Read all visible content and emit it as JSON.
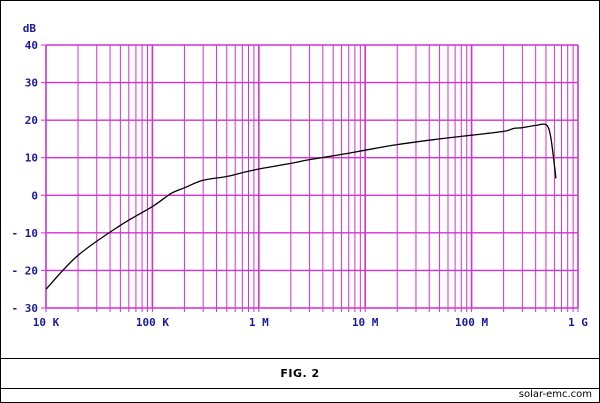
{
  "chart_data": {
    "type": "line",
    "title": "",
    "xlabel": "",
    "ylabel": "dB",
    "x_scale": "log",
    "xlim_hz": [
      10000,
      1000000000
    ],
    "ylim": [
      -30,
      40
    ],
    "grid": true,
    "y_ticks": [
      40,
      30,
      20,
      10,
      0,
      -10,
      -20,
      -30
    ],
    "y_tick_labels": [
      "40",
      "30",
      "20",
      "10",
      "0",
      "- 10",
      "- 20",
      "- 30"
    ],
    "x_ticks_hz": [
      10000,
      100000,
      1000000,
      10000000,
      100000000,
      1000000000
    ],
    "x_tick_labels": [
      "10 K",
      "100 K",
      "1 M",
      "10 M",
      "100 M",
      "1 G"
    ],
    "series": [
      {
        "x_hz": [
          10000,
          20000,
          50000,
          100000,
          150000,
          200000,
          300000,
          500000,
          700000,
          1000000,
          2000000,
          3000000,
          5000000,
          10000000,
          20000000,
          50000000,
          100000000,
          200000000,
          250000000,
          300000000,
          400000000,
          500000000,
          550000000,
          600000000,
          620000000
        ],
        "values": [
          -25,
          -16,
          -8,
          -3,
          0.5,
          2,
          4,
          5,
          6,
          7,
          8.5,
          9.5,
          10.5,
          12,
          13.5,
          15,
          16,
          17,
          17.8,
          18,
          18.6,
          18.8,
          16,
          8,
          4.5
        ]
      }
    ],
    "colors": {
      "grid": "#d430d4",
      "axis_text": "#1a1aa0",
      "line": "#000000"
    }
  },
  "caption": "FIG. 2",
  "credit": "solar-emc.com"
}
